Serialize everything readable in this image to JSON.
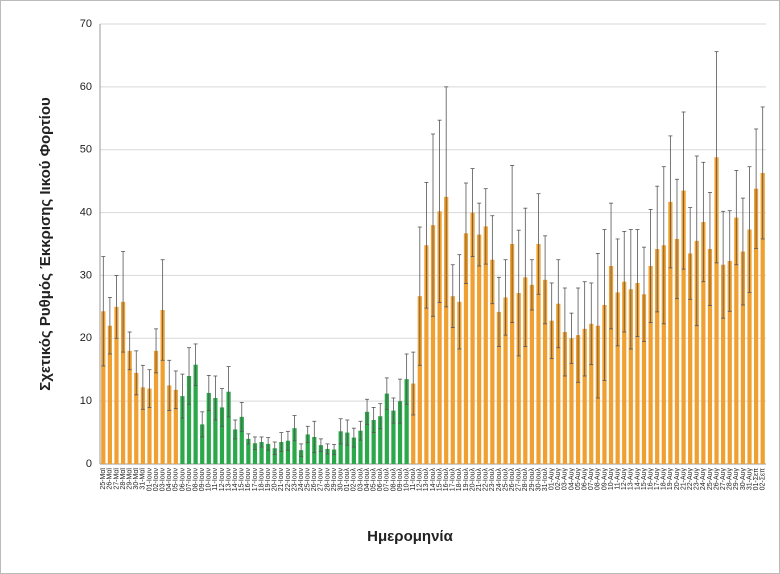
{
  "chart_data": {
    "type": "bar",
    "ylabel": "Σχετικός Ρυθμός Έκκρισης Ιικού Φορτίου",
    "xlabel": "Ημερομηνία",
    "categories": [
      "25-Μαϊ",
      "26-Μαϊ",
      "27-Μαϊ",
      "28-Μαϊ",
      "29-Μαϊ",
      "30-Μαϊ",
      "31-Μαϊ",
      "01-Ιουν",
      "02-Ιουν",
      "03-Ιουν",
      "04-Ιουν",
      "05-Ιουν",
      "06-Ιουν",
      "07-Ιουν",
      "08-Ιουν",
      "09-Ιουν",
      "10-Ιουν",
      "11-Ιουν",
      "12-Ιουν",
      "13-Ιουν",
      "14-Ιουν",
      "15-Ιουν",
      "16-Ιουν",
      "17-Ιουν",
      "18-Ιουν",
      "19-Ιουν",
      "20-Ιουν",
      "21-Ιουν",
      "22-Ιουν",
      "23-Ιουν",
      "24-Ιουν",
      "25-Ιουν",
      "26-Ιουν",
      "27-Ιουν",
      "28-Ιουν",
      "29-Ιουν",
      "30-Ιουν",
      "01-Ιουλ",
      "02-Ιουλ",
      "03-Ιουλ",
      "04-Ιουλ",
      "05-Ιουλ",
      "06-Ιουλ",
      "07-Ιουλ",
      "08-Ιουλ",
      "09-Ιουλ",
      "10-Ιουλ",
      "11-Ιουλ",
      "12-Ιουλ",
      "13-Ιουλ",
      "14-Ιουλ",
      "15-Ιουλ",
      "16-Ιουλ",
      "17-Ιουλ",
      "18-Ιουλ",
      "19-Ιουλ",
      "20-Ιουλ",
      "21-Ιουλ",
      "22-Ιουλ",
      "23-Ιουλ",
      "24-Ιουλ",
      "25-Ιουλ",
      "26-Ιουλ",
      "27-Ιουλ",
      "28-Ιουλ",
      "29-Ιουλ",
      "30-Ιουλ",
      "31-Ιουλ",
      "01-Αυγ",
      "02-Αυγ",
      "03-Αυγ",
      "04-Αυγ",
      "05-Αυγ",
      "06-Αυγ",
      "07-Αυγ",
      "08-Αυγ",
      "09-Αυγ",
      "10-Αυγ",
      "11-Αυγ",
      "12-Αυγ",
      "13-Αυγ",
      "14-Αυγ",
      "15-Αυγ",
      "16-Αυγ",
      "17-Αυγ",
      "18-Αυγ",
      "19-Αυγ",
      "20-Αυγ",
      "21-Αυγ",
      "22-Αυγ",
      "23-Αυγ",
      "24-Αυγ",
      "25-Αυγ",
      "26-Αυγ",
      "27-Αυγ",
      "28-Αυγ",
      "29-Αυγ",
      "30-Αυγ",
      "31-Αυγ",
      "01-Σεπ",
      "02-Σεπ"
    ],
    "values": [
      24.3,
      22,
      25,
      25.8,
      18,
      14.5,
      12.2,
      12,
      18,
      24.5,
      12.5,
      11.8,
      10.8,
      14,
      15.8,
      6.3,
      11.3,
      10.5,
      9,
      11.5,
      5.5,
      7.5,
      4,
      3.3,
      3.5,
      3.2,
      2.5,
      3.5,
      3.7,
      5.7,
      2.2,
      4.7,
      4.3,
      3,
      2.4,
      2.3,
      5.2,
      5,
      4.2,
      5.3,
      8.3,
      7,
      7.6,
      11.2,
      8.5,
      10,
      13.5,
      12.8,
      26.7,
      34.8,
      38,
      40.2,
      42.5,
      26.7,
      25.8,
      36.7,
      40,
      36.5,
      37.8,
      32.5,
      24.2,
      26.5,
      35,
      27.2,
      29.7,
      28.5,
      35,
      29.3,
      22.8,
      25.5,
      21,
      20,
      20.5,
      21.5,
      22.3,
      22,
      25.3,
      31.5,
      27.3,
      29,
      27.8,
      28.8,
      27,
      31.5,
      34.2,
      34.8,
      41.7,
      35.8,
      43.5,
      33.5,
      35.5,
      38.5,
      34.2,
      48.8,
      31.7,
      32.3,
      39.2,
      33.8,
      37.3,
      43.8,
      46.3
    ],
    "errors": [
      8.7,
      4.5,
      5,
      8,
      3,
      3.5,
      3.5,
      3,
      3.5,
      8,
      4,
      3,
      3.5,
      4.5,
      3.3,
      2,
      2.8,
      3.5,
      3,
      4,
      1.5,
      2.3,
      0.8,
      1,
      0.8,
      1,
      1,
      1.5,
      1.5,
      2,
      1,
      1.3,
      2.5,
      1,
      0.8,
      0.8,
      2,
      2,
      1.5,
      1.5,
      2,
      2,
      2,
      2.5,
      2,
      3.5,
      4,
      5,
      11,
      10,
      14.5,
      14.5,
      17.5,
      5,
      7.5,
      8,
      7,
      5,
      6,
      7,
      5.5,
      6,
      12.5,
      10,
      11,
      4,
      8,
      7,
      6,
      7,
      7,
      4,
      7.5,
      7.5,
      6.5,
      11.5,
      12,
      10,
      8.5,
      8,
      9.5,
      8.5,
      7.5,
      9,
      10,
      12.5,
      10.5,
      9.5,
      12.5,
      7.3,
      13.5,
      9.5,
      9,
      16.8,
      8.5,
      8,
      7.5,
      8.5,
      10,
      9.5,
      10.5
    ],
    "colors": [
      "#f0a030",
      "#f0a030",
      "#f0a030",
      "#f0a030",
      "#f0a030",
      "#f0a030",
      "#f0a030",
      "#f0a030",
      "#f0a030",
      "#f0a030",
      "#f0a030",
      "#f0a030",
      "#2aa84a",
      "#2aa84a",
      "#2aa84a",
      "#2aa84a",
      "#2aa84a",
      "#2aa84a",
      "#2aa84a",
      "#2aa84a",
      "#2aa84a",
      "#2aa84a",
      "#2aa84a",
      "#2aa84a",
      "#2aa84a",
      "#2aa84a",
      "#2aa84a",
      "#2aa84a",
      "#2aa84a",
      "#2aa84a",
      "#2aa84a",
      "#2aa84a",
      "#2aa84a",
      "#2aa84a",
      "#2aa84a",
      "#2aa84a",
      "#2aa84a",
      "#2aa84a",
      "#2aa84a",
      "#2aa84a",
      "#2aa84a",
      "#2aa84a",
      "#2aa84a",
      "#2aa84a",
      "#2aa84a",
      "#2aa84a",
      "#2aa84a",
      "#f0a030",
      "#f0a030",
      "#f0a030",
      "#f0a030",
      "#f0a030",
      "#f0a030",
      "#f0a030",
      "#f0a030",
      "#f0a030",
      "#f0a030",
      "#f0a030",
      "#f0a030",
      "#f0a030",
      "#f0a030",
      "#f0a030",
      "#f0a030",
      "#f0a030",
      "#f0a030",
      "#f0a030",
      "#f0a030",
      "#f0a030",
      "#f0a030",
      "#f0a030",
      "#f0a030",
      "#f0a030",
      "#f0a030",
      "#f0a030",
      "#f0a030",
      "#f0a030",
      "#f0a030",
      "#f0a030",
      "#f0a030",
      "#f0a030",
      "#f0a030",
      "#f0a030",
      "#f0a030",
      "#f0a030",
      "#f0a030",
      "#f0a030",
      "#f0a030",
      "#f0a030",
      "#f0a030",
      "#f0a030",
      "#f0a030",
      "#f0a030",
      "#f0a030",
      "#f0a030",
      "#f0a030",
      "#f0a030",
      "#f0a030",
      "#f0a030",
      "#f0a030",
      "#f0a030",
      "#f0a030"
    ],
    "ylim": [
      0,
      70
    ],
    "yticks": [
      0,
      10,
      20,
      30,
      40,
      50,
      60,
      70
    ],
    "grid": true
  }
}
